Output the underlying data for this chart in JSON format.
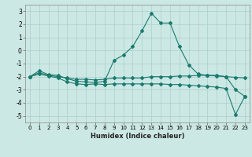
{
  "x": [
    0,
    1,
    2,
    3,
    4,
    5,
    6,
    7,
    8,
    9,
    10,
    11,
    12,
    13,
    14,
    15,
    16,
    17,
    18,
    19,
    20,
    21,
    22,
    23
  ],
  "line1": [
    -2.0,
    -1.55,
    -1.85,
    -1.9,
    -2.15,
    -2.35,
    -2.4,
    -2.45,
    -2.35,
    -0.75,
    -0.35,
    0.3,
    1.5,
    2.85,
    2.1,
    2.1,
    0.3,
    -1.1,
    -1.8,
    -1.9,
    -1.95,
    -2.0,
    -3.0,
    -3.5
  ],
  "line2": [
    -2.0,
    -1.7,
    -1.9,
    -2.0,
    -2.1,
    -2.2,
    -2.2,
    -2.25,
    -2.2,
    -2.1,
    -2.1,
    -2.1,
    -2.1,
    -2.0,
    -2.0,
    -2.0,
    -1.95,
    -1.95,
    -1.9,
    -1.9,
    -1.9,
    -2.0,
    -2.05,
    -2.1
  ],
  "line3": [
    -2.0,
    -1.8,
    -1.95,
    -2.1,
    -2.4,
    -2.55,
    -2.6,
    -2.55,
    -2.6,
    -2.55,
    -2.55,
    -2.55,
    -2.55,
    -2.55,
    -2.55,
    -2.6,
    -2.6,
    -2.65,
    -2.7,
    -2.75,
    -2.8,
    -2.9,
    -4.9,
    -3.5
  ],
  "color": "#1a7a6e",
  "bg_color": "#cce8e4",
  "grid_color": "#aacfcc",
  "xlim": [
    -0.5,
    23.5
  ],
  "ylim": [
    -5.5,
    3.5
  ],
  "yticks": [
    3,
    2,
    1,
    0,
    -1,
    -2,
    -3,
    -4,
    -5
  ],
  "xticks": [
    0,
    1,
    2,
    3,
    4,
    5,
    6,
    7,
    8,
    9,
    10,
    11,
    12,
    13,
    14,
    15,
    16,
    17,
    18,
    19,
    20,
    21,
    22,
    23
  ],
  "xlabel": "Humidex (Indice chaleur)",
  "xlabel_fontsize": 6.0,
  "tick_fontsize": 5.0,
  "ytick_fontsize": 5.5
}
